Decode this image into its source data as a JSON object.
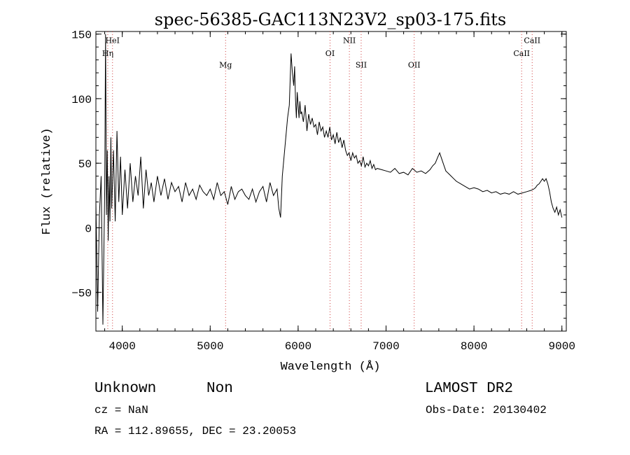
{
  "chart_data": {
    "type": "line",
    "title": "spec-56385-GAC113N23V2_sp03-175.fits",
    "xlabel": "Wavelength (Å)",
    "ylabel": "Flux (relative)",
    "xlim": [
      3700,
      9050
    ],
    "ylim": [
      -80,
      152
    ],
    "xticks": [
      4000,
      5000,
      6000,
      7000,
      8000,
      9000
    ],
    "yticks": [
      -50,
      0,
      50,
      100,
      150
    ],
    "grid": false,
    "legend": "none",
    "line_color": "#000000",
    "series": [
      {
        "x": [
          3700,
          3720,
          3740,
          3760,
          3780,
          3800,
          3810,
          3820,
          3830,
          3840,
          3850,
          3860,
          3870,
          3880,
          3900,
          3920,
          3940,
          3960,
          3980,
          4000,
          4030,
          4060,
          4090,
          4120,
          4150,
          4180,
          4210,
          4240,
          4270,
          4300,
          4330,
          4360,
          4400,
          4440,
          4480,
          4520,
          4560,
          4600,
          4640,
          4680,
          4720,
          4760,
          4800,
          4840,
          4880,
          4920,
          4960,
          5000,
          5040,
          5080,
          5120,
          5160,
          5200,
          5240,
          5280,
          5320,
          5360,
          5400,
          5440,
          5480,
          5520,
          5560,
          5600,
          5640,
          5680,
          5720,
          5760,
          5780,
          5800,
          5820,
          5840,
          5860,
          5880,
          5900,
          5920,
          5935,
          5950,
          5960,
          5970,
          5980,
          5990,
          6000,
          6010,
          6020,
          6030,
          6040,
          6060,
          6080,
          6100,
          6120,
          6140,
          6160,
          6180,
          6200,
          6220,
          6240,
          6260,
          6280,
          6300,
          6320,
          6340,
          6360,
          6380,
          6400,
          6420,
          6440,
          6460,
          6480,
          6500,
          6520,
          6540,
          6560,
          6580,
          6600,
          6620,
          6640,
          6660,
          6680,
          6700,
          6720,
          6740,
          6760,
          6780,
          6800,
          6820,
          6840,
          6860,
          6880,
          6900,
          6950,
          7000,
          7050,
          7100,
          7150,
          7200,
          7250,
          7300,
          7350,
          7400,
          7450,
          7500,
          7530,
          7560,
          7590,
          7610,
          7630,
          7650,
          7680,
          7710,
          7740,
          7770,
          7800,
          7850,
          7900,
          7950,
          8000,
          8050,
          8100,
          8150,
          8200,
          8250,
          8300,
          8350,
          8400,
          8450,
          8500,
          8550,
          8600,
          8650,
          8680,
          8700,
          8720,
          8740,
          8760,
          8780,
          8800,
          8820,
          8840,
          8860,
          8880,
          8900,
          8920,
          8940,
          8960,
          8980,
          9000
        ],
        "y": [
          20,
          -65,
          10,
          40,
          -75,
          30,
          150,
          10,
          60,
          -10,
          40,
          5,
          70,
          15,
          60,
          5,
          75,
          20,
          55,
          10,
          45,
          15,
          50,
          20,
          40,
          25,
          55,
          15,
          45,
          25,
          35,
          20,
          40,
          25,
          38,
          22,
          35,
          28,
          32,
          20,
          35,
          25,
          30,
          22,
          33,
          28,
          25,
          30,
          22,
          35,
          25,
          28,
          18,
          32,
          22,
          28,
          30,
          25,
          22,
          30,
          20,
          28,
          32,
          20,
          35,
          25,
          30,
          15,
          8,
          40,
          55,
          70,
          85,
          95,
          135,
          120,
          110,
          125,
          100,
          85,
          105,
          95,
          85,
          98,
          88,
          90,
          82,
          95,
          75,
          88,
          80,
          85,
          78,
          80,
          72,
          82,
          75,
          78,
          70,
          75,
          70,
          78,
          68,
          72,
          65,
          74,
          66,
          70,
          62,
          68,
          60,
          56,
          58,
          52,
          58,
          54,
          56,
          50,
          52,
          48,
          55,
          47,
          50,
          48,
          52,
          46,
          49,
          45,
          46,
          45,
          44,
          43,
          46,
          42,
          43,
          41,
          46,
          43,
          44,
          42,
          45,
          48,
          50,
          55,
          58,
          54,
          50,
          44,
          42,
          40,
          38,
          36,
          34,
          32,
          30,
          31,
          30,
          28,
          29,
          27,
          28,
          26,
          27,
          26,
          28,
          26,
          27,
          28,
          29,
          30,
          31,
          33,
          34,
          36,
          38,
          36,
          38,
          34,
          28,
          20,
          15,
          12,
          16,
          10,
          14,
          8
        ]
      }
    ],
    "annotations": [
      {
        "label": "Hη",
        "x": 3835,
        "y": 133,
        "style": "italic-eta"
      },
      {
        "label": "HeI",
        "x": 3889,
        "y": 143
      },
      {
        "label": "Mg",
        "x": 5175,
        "y": 124
      },
      {
        "label": "OI",
        "x": 6363,
        "y": 133
      },
      {
        "label": "NII",
        "x": 6583,
        "y": 143
      },
      {
        "label": "SII",
        "x": 6717,
        "y": 124
      },
      {
        "label": "OII",
        "x": 7320,
        "y": 124
      },
      {
        "label": "CaII",
        "x": 8542,
        "y": 133
      },
      {
        "label": "CaII",
        "x": 8662,
        "y": 143
      }
    ],
    "line_markers_x": [
      3835,
      3889,
      5175,
      6363,
      6583,
      6717,
      7320,
      8542,
      8662
    ]
  },
  "info": {
    "class_label": "Unknown",
    "subclass_label": "Non",
    "survey": "LAMOST DR2",
    "cz": "cz = NaN",
    "obs_date": "Obs-Date: 20130402",
    "coords": "RA = 112.89655, DEC =  23.20053"
  }
}
